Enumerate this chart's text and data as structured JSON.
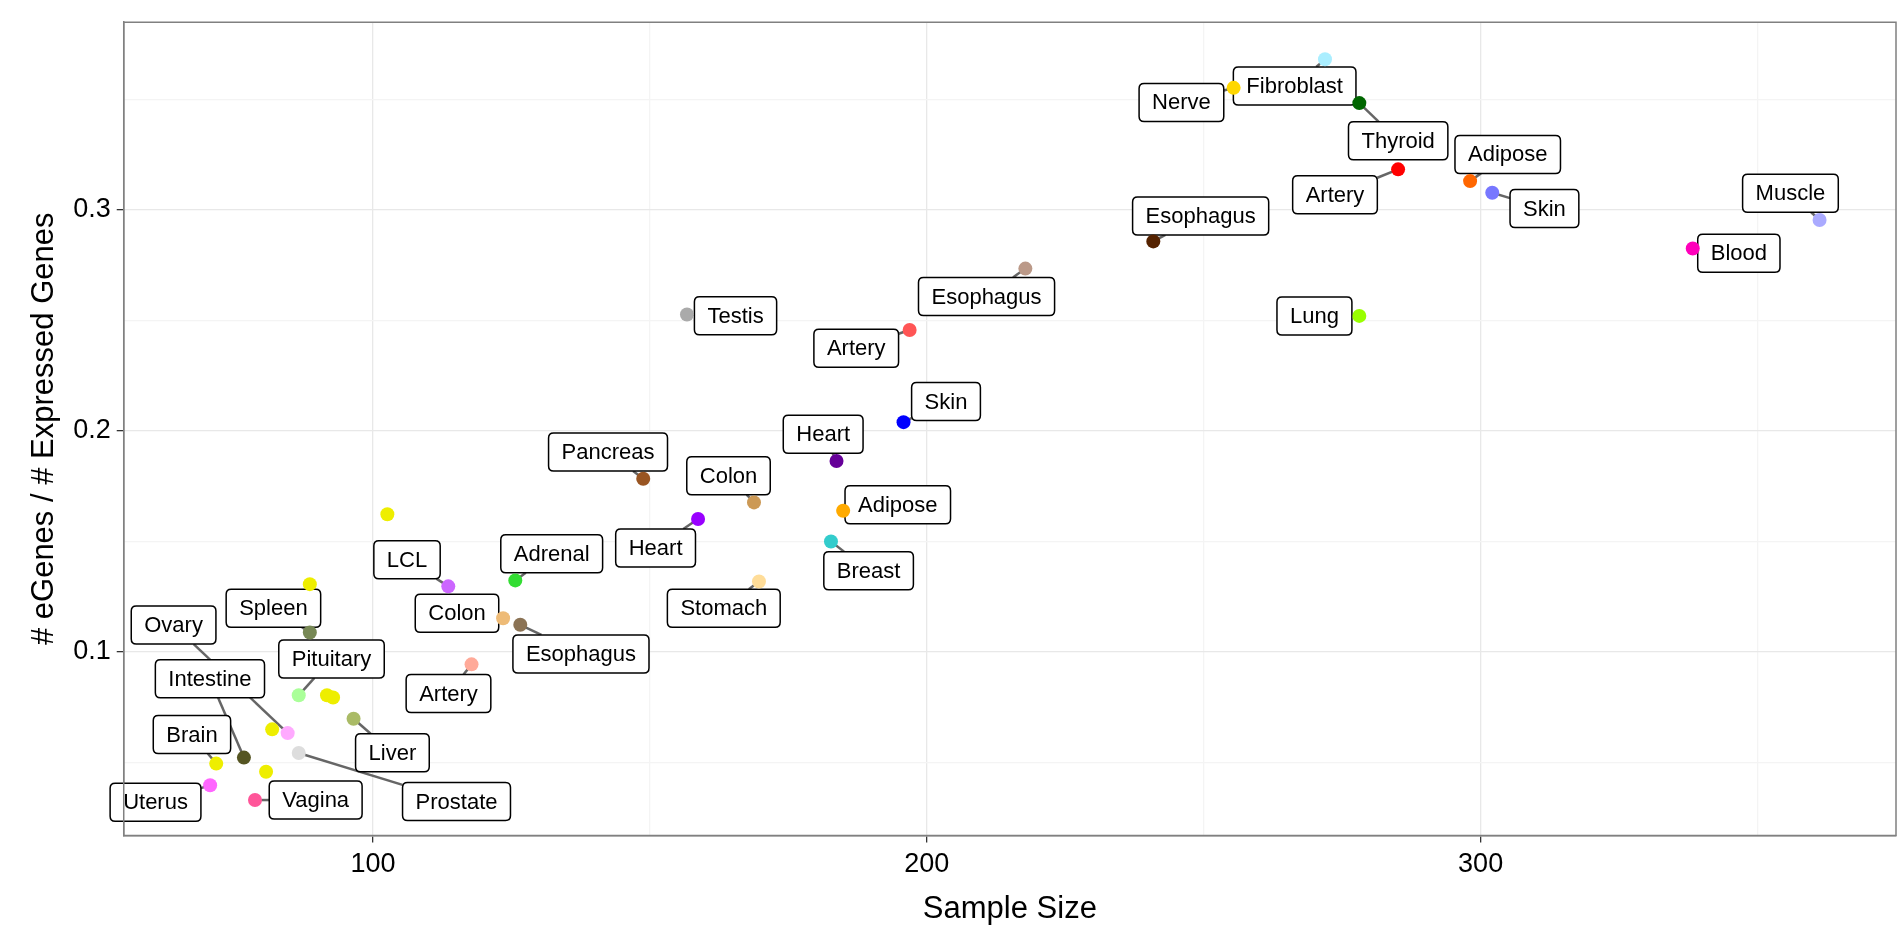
{
  "chart_data": {
    "type": "scatter",
    "xlabel": "Sample Size",
    "ylabel": "# eGenes / # Expressed Genes",
    "xlim": [
      55,
      375
    ],
    "ylim": [
      0.017,
      0.385
    ],
    "xticks": [
      100,
      {
        "value": 150,
        "label": null
      },
      200,
      {
        "value": 250,
        "label": null
      },
      300,
      {
        "value": 350,
        "label": null
      }
    ],
    "yticks": [
      {
        "value": 0.05,
        "label": null
      },
      0.1,
      {
        "value": 0.15,
        "label": null
      },
      0.2,
      {
        "value": 0.25,
        "label": null
      },
      0.3,
      {
        "value": 0.35,
        "label": null
      }
    ],
    "grid": true,
    "legend": false,
    "marker": "circle",
    "series": [
      {
        "x": [
          361.2,
          338.3,
          302.1,
          298.1,
          285.1,
          278.1,
          278.1,
          271.9,
          255.4,
          240.9,
          217.8,
          196.9,
          195.8,
          183.7,
          184.9,
          182.7,
          169.7,
          168.8,
          158.7,
          156.7,
          148.8,
          113.6,
          125.7,
          123.5,
          126.6,
          117.8,
          88.6,
          86.6,
          96.5,
          84.6,
          76.7,
          86.6,
          71.7,
          70.6,
          78.7,
          102.6,
          88.6,
          91.7,
          92.8,
          81.8,
          80.7
        ],
        "values": [
          0.2955,
          0.2826,
          0.3078,
          0.3131,
          0.3184,
          0.2521,
          0.3484,
          0.3682,
          0.3553,
          0.2858,
          0.2735,
          0.2457,
          0.204,
          0.1864,
          0.1639,
          0.15,
          0.1319,
          0.1677,
          0.1602,
          0.2527,
          0.1784,
          0.1297,
          0.1324,
          0.1153,
          0.1123,
          0.0944,
          0.1088,
          0.0804,
          0.0698,
          0.0633,
          0.0522,
          0.0543,
          0.0495,
          0.0397,
          0.033,
          0.1623,
          0.1307,
          0.0804,
          0.0794,
          0.065,
          0.0458
        ],
        "colors": [
          "#aaaaff",
          "#ff00bb",
          "#7777ff",
          "#ff6600",
          "#ff0000",
          "#99ff00",
          "#006600",
          "#aaeeff",
          "#ffd700",
          "#552200",
          "#bb9988",
          "#ff5555",
          "#0000ff",
          "#660099",
          "#ffaa00",
          "#33cccc",
          "#ffdd99",
          "#cc9955",
          "#9900ff",
          "#aaaaaa",
          "#995522",
          "#cc66ff",
          "#33dd33",
          "#eebb77",
          "#8b7355",
          "#ffaa99",
          "#778855",
          "#aaff99",
          "#aabb66",
          "#ffaaff",
          "#555522",
          "#dddddd",
          "#eeee00",
          "#ff66ff",
          "#ff5599",
          "#eeee00",
          "#eeee00",
          "#eeee00",
          "#eeee00",
          "#eeee00",
          "#eeee00"
        ]
      }
    ],
    "annotations": [
      {
        "text": "Muscle",
        "x": 361.2,
        "y": 0.2955
      },
      {
        "text": "Blood",
        "x": 338.3,
        "y": 0.2826
      },
      {
        "text": "Skin",
        "x": 302.1,
        "y": 0.3078
      },
      {
        "text": "Adipose",
        "x": 298.1,
        "y": 0.3131
      },
      {
        "text": "Artery",
        "x": 285.1,
        "y": 0.3184
      },
      {
        "text": "Lung",
        "x": 278.1,
        "y": 0.2521
      },
      {
        "text": "Thyroid",
        "x": 278.1,
        "y": 0.3484
      },
      {
        "text": "Fibroblast",
        "x": 271.9,
        "y": 0.3682
      },
      {
        "text": "Nerve",
        "x": 255.4,
        "y": 0.3553
      },
      {
        "text": "Esophagus",
        "x": 240.9,
        "y": 0.2858
      },
      {
        "text": "Esophagus",
        "x": 217.8,
        "y": 0.2735
      },
      {
        "text": "Artery",
        "x": 196.9,
        "y": 0.2457
      },
      {
        "text": "Skin",
        "x": 195.8,
        "y": 0.204
      },
      {
        "text": "Heart",
        "x": 183.7,
        "y": 0.1864
      },
      {
        "text": "Adipose",
        "x": 184.9,
        "y": 0.1639
      },
      {
        "text": "Breast",
        "x": 182.7,
        "y": 0.15
      },
      {
        "text": "Stomach",
        "x": 169.7,
        "y": 0.1319
      },
      {
        "text": "Colon",
        "x": 168.8,
        "y": 0.1677
      },
      {
        "text": "Heart",
        "x": 158.7,
        "y": 0.1602
      },
      {
        "text": "Testis",
        "x": 156.7,
        "y": 0.2527
      },
      {
        "text": "Pancreas",
        "x": 148.8,
        "y": 0.1784
      },
      {
        "text": "LCL",
        "x": 113.6,
        "y": 0.1297
      },
      {
        "text": "Adrenal",
        "x": 125.7,
        "y": 0.1324
      },
      {
        "text": "Colon",
        "x": 123.5,
        "y": 0.1153
      },
      {
        "text": "Esophagus",
        "x": 126.6,
        "y": 0.1123
      },
      {
        "text": "Artery",
        "x": 117.8,
        "y": 0.0944
      },
      {
        "text": "Spleen",
        "x": 88.6,
        "y": 0.1088
      },
      {
        "text": "Pituitary",
        "x": 86.6,
        "y": 0.0804
      },
      {
        "text": "Liver",
        "x": 96.5,
        "y": 0.0698
      },
      {
        "text": "Ovary",
        "x": 84.6,
        "y": 0.0633
      },
      {
        "text": "Intestine",
        "x": 76.7,
        "y": 0.0522
      },
      {
        "text": "Prostate",
        "x": 86.6,
        "y": 0.0543
      },
      {
        "text": "Brain",
        "x": 71.7,
        "y": 0.0495
      },
      {
        "text": "Uterus",
        "x": 70.6,
        "y": 0.0397
      },
      {
        "text": "Vagina",
        "x": 78.7,
        "y": 0.033
      }
    ]
  }
}
